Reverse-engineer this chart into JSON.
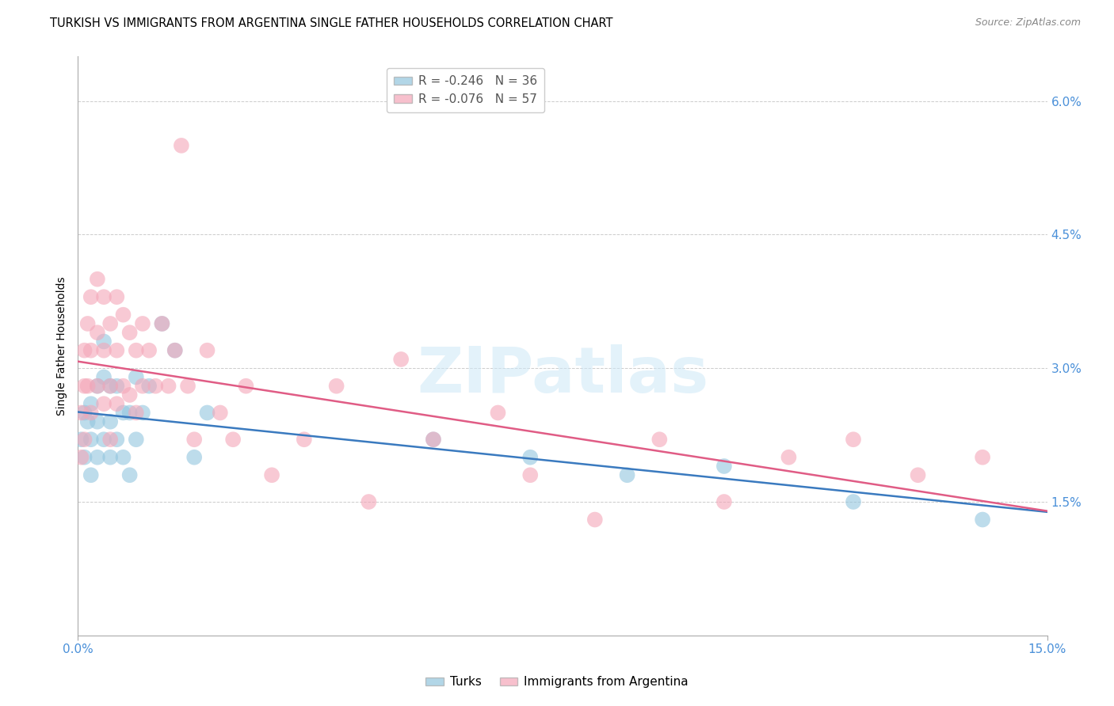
{
  "title": "TURKISH VS IMMIGRANTS FROM ARGENTINA SINGLE FATHER HOUSEHOLDS CORRELATION CHART",
  "source": "Source: ZipAtlas.com",
  "ylabel": "Single Father Households",
  "xlim": [
    0.0,
    0.15
  ],
  "ylim": [
    0.0,
    0.065
  ],
  "legend1_label": "R = -0.246   N = 36",
  "legend2_label": "R = -0.076   N = 57",
  "color_blue": "#92c5de",
  "color_pink": "#f4a6b8",
  "line_blue": "#3a7abf",
  "line_pink": "#e05c85",
  "watermark": "ZIPatlas",
  "tick_color": "#4a90d9",
  "turks_x": [
    0.0005,
    0.001,
    0.001,
    0.0015,
    0.002,
    0.002,
    0.002,
    0.003,
    0.003,
    0.003,
    0.004,
    0.004,
    0.004,
    0.005,
    0.005,
    0.005,
    0.006,
    0.006,
    0.007,
    0.007,
    0.008,
    0.008,
    0.009,
    0.009,
    0.01,
    0.011,
    0.013,
    0.015,
    0.018,
    0.02,
    0.055,
    0.07,
    0.085,
    0.1,
    0.12,
    0.14
  ],
  "turks_y": [
    0.022,
    0.025,
    0.02,
    0.024,
    0.026,
    0.022,
    0.018,
    0.028,
    0.024,
    0.02,
    0.033,
    0.029,
    0.022,
    0.028,
    0.024,
    0.02,
    0.028,
    0.022,
    0.025,
    0.02,
    0.025,
    0.018,
    0.029,
    0.022,
    0.025,
    0.028,
    0.035,
    0.032,
    0.02,
    0.025,
    0.022,
    0.02,
    0.018,
    0.019,
    0.015,
    0.013
  ],
  "argentina_x": [
    0.0005,
    0.0005,
    0.001,
    0.001,
    0.001,
    0.0015,
    0.0015,
    0.002,
    0.002,
    0.002,
    0.003,
    0.003,
    0.003,
    0.004,
    0.004,
    0.004,
    0.005,
    0.005,
    0.005,
    0.006,
    0.006,
    0.006,
    0.007,
    0.007,
    0.008,
    0.008,
    0.009,
    0.009,
    0.01,
    0.01,
    0.011,
    0.012,
    0.013,
    0.014,
    0.015,
    0.016,
    0.017,
    0.018,
    0.02,
    0.022,
    0.024,
    0.026,
    0.03,
    0.035,
    0.04,
    0.045,
    0.05,
    0.055,
    0.065,
    0.07,
    0.08,
    0.09,
    0.1,
    0.11,
    0.12,
    0.13,
    0.14
  ],
  "argentina_y": [
    0.025,
    0.02,
    0.032,
    0.028,
    0.022,
    0.035,
    0.028,
    0.038,
    0.032,
    0.025,
    0.04,
    0.034,
    0.028,
    0.038,
    0.032,
    0.026,
    0.035,
    0.028,
    0.022,
    0.038,
    0.032,
    0.026,
    0.036,
    0.028,
    0.034,
    0.027,
    0.032,
    0.025,
    0.035,
    0.028,
    0.032,
    0.028,
    0.035,
    0.028,
    0.032,
    0.055,
    0.028,
    0.022,
    0.032,
    0.025,
    0.022,
    0.028,
    0.018,
    0.022,
    0.028,
    0.015,
    0.031,
    0.022,
    0.025,
    0.018,
    0.013,
    0.022,
    0.015,
    0.02,
    0.022,
    0.018,
    0.02
  ]
}
